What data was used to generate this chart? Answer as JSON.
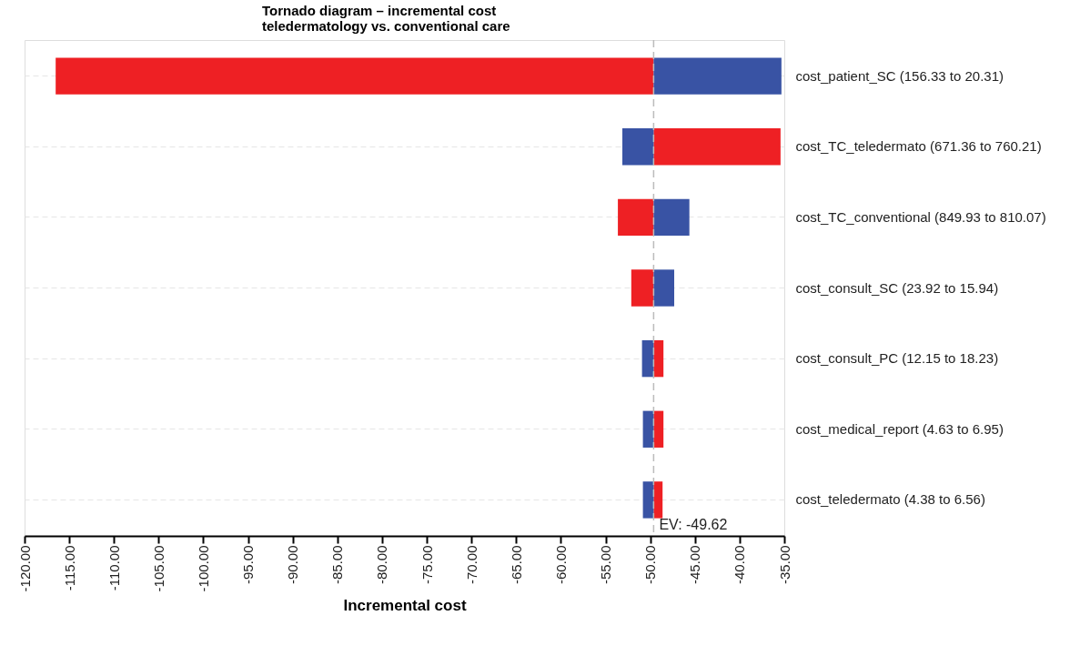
{
  "chart_data": {
    "type": "bar",
    "orientation": "horizontal",
    "title": "Tornado diagram – incremental cost teledermatology vs. conventional care",
    "xlabel": "Incremental cost",
    "categories": [
      "cost_patient_SC (156.33 to 20.31)",
      "cost_TC_teledermato (671.36 to 760.21)",
      "cost_TC_conventional (849.93 to 810.07)",
      "cost_consult_SC (23.92 to 15.94)",
      "cost_consult_PC (12.15 to 18.23)",
      "cost_medical_report (4.63 to 6.95)",
      "cost_teledermato (4.38 to 6.56)"
    ],
    "series": [
      {
        "color": "#ee2024",
        "base": [
          -49.62,
          -49.62,
          -49.62,
          -49.62,
          -49.62,
          -49.62,
          -49.62
        ],
        "values": [
          -66.9,
          14.2,
          -4.0,
          -2.5,
          1.1,
          1.1,
          1.0
        ]
      },
      {
        "color": "#3953a4",
        "base": [
          -49.62,
          -49.62,
          -49.62,
          -49.62,
          -49.62,
          -49.62,
          -49.62
        ],
        "values": [
          14.3,
          -3.5,
          4.0,
          2.3,
          -1.3,
          -1.2,
          -1.2
        ]
      }
    ],
    "xlim": [
      -120,
      -35
    ],
    "xticks": [
      {
        "value": -120,
        "label": "-120.00"
      },
      {
        "value": -115,
        "label": "-115.00"
      },
      {
        "value": -110,
        "label": "-110.00"
      },
      {
        "value": -105,
        "label": "-105.00"
      },
      {
        "value": -100,
        "label": "-100.00"
      },
      {
        "value": -95,
        "label": "-95.00"
      },
      {
        "value": -90,
        "label": "-90.00"
      },
      {
        "value": -85,
        "label": "-85.00"
      },
      {
        "value": -80,
        "label": "-80.00"
      },
      {
        "value": -75,
        "label": "-75.00"
      },
      {
        "value": -70,
        "label": "-70.00"
      },
      {
        "value": -65,
        "label": "-65.00"
      },
      {
        "value": -60,
        "label": "-60.00"
      },
      {
        "value": -55,
        "label": "-55.00"
      },
      {
        "value": -50,
        "label": "-50.00"
      },
      {
        "value": -45,
        "label": "-45.00"
      },
      {
        "value": -40,
        "label": "-40.00"
      },
      {
        "value": -35,
        "label": "-35.00"
      }
    ],
    "ref_lines": [
      {
        "axis": "x",
        "value": -49.62,
        "label": "EV: -49.62",
        "color": "#bbbbbb",
        "line_style": "dashed"
      }
    ],
    "grid": "y",
    "legend": false
  }
}
